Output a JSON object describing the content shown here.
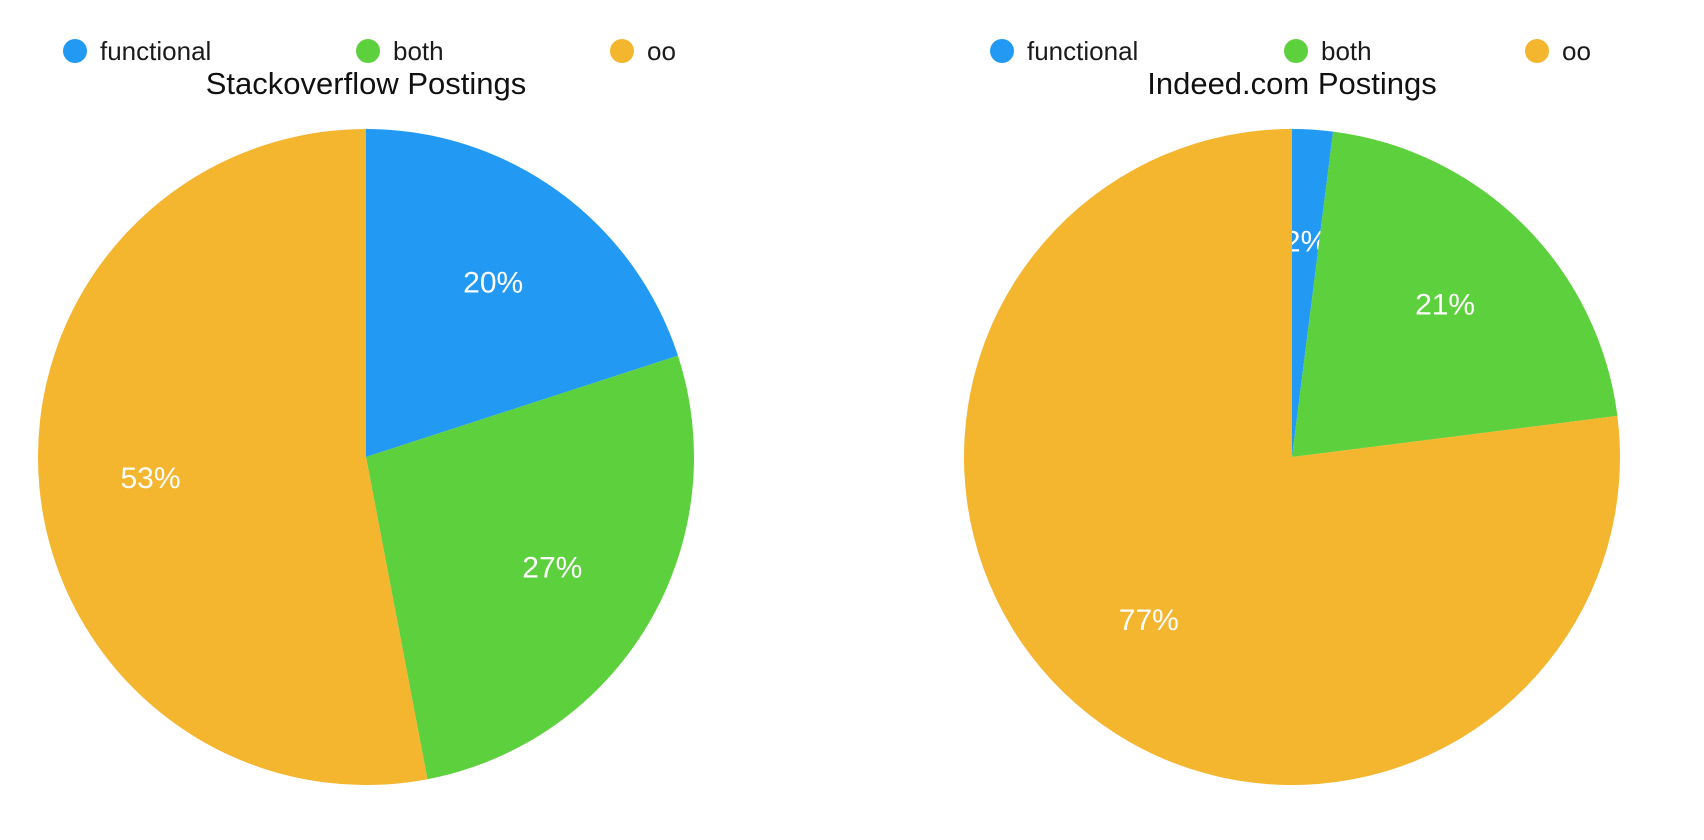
{
  "page": {
    "background": "#ffffff"
  },
  "chart_data": [
    {
      "type": "pie",
      "title": "Stackoverflow Postings",
      "labels": [
        "functional",
        "both",
        "oo"
      ],
      "values": [
        20,
        27,
        53
      ],
      "slice_labels": [
        "20%",
        "27%",
        "53%"
      ],
      "colors": [
        "#2299F2",
        "#5DD03D",
        "#F4B52F"
      ],
      "slice_label_color": "#ffffff",
      "title_color": "#111111",
      "legend_text_color": "#1a1a1a",
      "legend_position": "top",
      "start_angle": "12-oclock",
      "direction": "clockwise"
    },
    {
      "type": "pie",
      "title": "Indeed.com Postings",
      "labels": [
        "functional",
        "both",
        "oo"
      ],
      "values": [
        2,
        21,
        77
      ],
      "slice_labels": [
        "2%",
        "21%",
        "77%"
      ],
      "colors": [
        "#2299F2",
        "#5DD03D",
        "#F4B52F"
      ],
      "slice_label_color": "#ffffff",
      "title_color": "#111111",
      "legend_text_color": "#1a1a1a",
      "legend_position": "top",
      "start_angle": "12-oclock",
      "direction": "clockwise"
    }
  ]
}
